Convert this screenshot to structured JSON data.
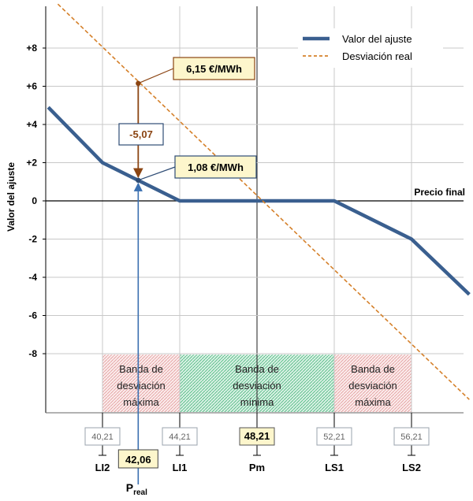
{
  "chart_data": {
    "type": "line",
    "ylabel": "Valor del ajuste",
    "x_axis_label": "Precio final",
    "ylim": [
      -11.2,
      10.2
    ],
    "y_ticks": [
      {
        "value": 8,
        "label": "+8"
      },
      {
        "value": 6,
        "label": "+6"
      },
      {
        "value": 4,
        "label": "+4"
      },
      {
        "value": 2,
        "label": "+2"
      },
      {
        "value": 0,
        "label": "0"
      },
      {
        "value": -2,
        "label": "-2"
      },
      {
        "value": -4,
        "label": "-4"
      },
      {
        "value": -6,
        "label": "-6"
      },
      {
        "value": -8,
        "label": "-8"
      }
    ],
    "price_marks": [
      {
        "value": 40.21,
        "label": "40,21",
        "name": "LI2",
        "highlight": false
      },
      {
        "value": 44.21,
        "label": "44,21",
        "name": "LI1",
        "highlight": false
      },
      {
        "value": 48.21,
        "label": "48,21",
        "name": "Pm",
        "highlight": true
      },
      {
        "value": 52.21,
        "label": "52,21",
        "name": "LS1",
        "highlight": false
      },
      {
        "value": 56.21,
        "label": "56,21",
        "name": "LS2",
        "highlight": false
      }
    ],
    "series": [
      {
        "name": "Valor del ajuste",
        "color": "#3a5f8f",
        "style": "solid",
        "points": [
          [
            37.4,
            4.9
          ],
          [
            40.21,
            2
          ],
          [
            44.21,
            0
          ],
          [
            52.21,
            0
          ],
          [
            56.21,
            -2
          ],
          [
            59.2,
            -4.9
          ]
        ]
      },
      {
        "name": "Desviación real",
        "color": "#d5802a",
        "style": "dashed",
        "points": [
          [
            37.9,
            10.3
          ],
          [
            59.2,
            -10.4
          ]
        ]
      }
    ],
    "bands": [
      {
        "from": 40.21,
        "to": 44.21,
        "lines": [
          "Banda de",
          "desviación",
          "máxima"
        ],
        "color": "#e9a3a3"
      },
      {
        "from": 44.21,
        "to": 52.21,
        "lines": [
          "Banda de",
          "desviación",
          "mínima"
        ],
        "color": "#5fc28f"
      },
      {
        "from": 52.21,
        "to": 56.21,
        "lines": [
          "Banda de",
          "desviación",
          "máxima"
        ],
        "color": "#e9a3a3"
      }
    ],
    "p_real": {
      "value": 42.06,
      "label": "42,06",
      "name_main": "P",
      "name_sub": "real"
    },
    "annotations": {
      "deviation_value": 6.15,
      "deviation_label": "6,15 €/MWh",
      "adjustment_value": 1.08,
      "adjustment_label": "1,08 €/MWh",
      "difference_label": "-5,07"
    },
    "legend": {
      "position": "top-right",
      "entries": [
        "Valor del ajuste",
        "Desviación real"
      ]
    }
  }
}
